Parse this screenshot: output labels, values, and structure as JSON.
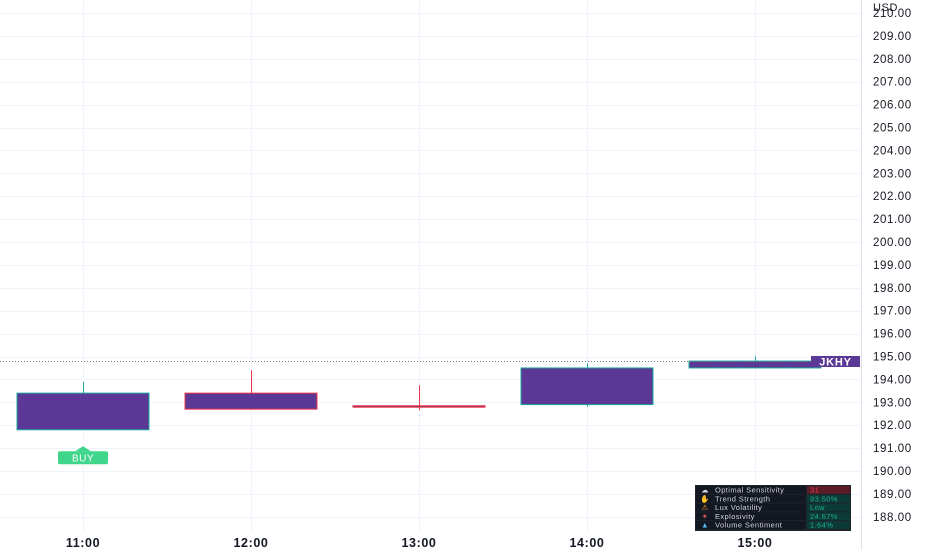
{
  "chart_data": {
    "type": "candlestick",
    "currency": "USD",
    "ticker": "JKHY",
    "last_price": 194.8,
    "price_axis": {
      "ylim": [
        187.3,
        210.0
      ],
      "tick_labels": [
        "210.00",
        "209.00",
        "208.00",
        "207.00",
        "206.00",
        "205.00",
        "204.00",
        "203.00",
        "202.00",
        "201.00",
        "200.00",
        "199.00",
        "198.00",
        "197.00",
        "196.00",
        "195.00",
        "194.00",
        "193.00",
        "192.00",
        "191.00",
        "190.00",
        "189.00",
        "188.00"
      ]
    },
    "time_axis": {
      "labels": [
        "11:00",
        "12:00",
        "13:00",
        "14:00",
        "15:00"
      ]
    },
    "candles": [
      {
        "time": "11:00",
        "open": 191.8,
        "high": 193.9,
        "low": 191.8,
        "close": 193.4,
        "direction": "up"
      },
      {
        "time": "12:00",
        "open": 193.4,
        "high": 194.4,
        "low": 192.7,
        "close": 192.7,
        "direction": "down"
      },
      {
        "time": "13:00",
        "open": 192.85,
        "high": 193.75,
        "low": 192.65,
        "close": 192.85,
        "direction": "down"
      },
      {
        "time": "14:00",
        "open": 192.9,
        "high": 194.7,
        "low": 192.8,
        "close": 194.5,
        "direction": "up"
      },
      {
        "time": "15:00",
        "open": 194.5,
        "high": 195.0,
        "low": 194.5,
        "close": 194.8,
        "direction": "up"
      }
    ],
    "signals": [
      {
        "time": "11:00",
        "label": "BUY",
        "price": 190.6
      }
    ],
    "grid": true,
    "colors": {
      "candle_body": "#5b3796",
      "up_wick": "#1ba89c",
      "down_wick": "#f23645",
      "buy_signal": "#3fd68c",
      "last_price_line": "#787b86",
      "ticker_badge": "#5b3796"
    }
  },
  "dashboard": {
    "rows": [
      {
        "icon": "optimal-sensitivity-icon",
        "label": "Optimal Sensitivity",
        "value": "31",
        "value_color": "#f23645",
        "value_bg": "#5a1d28"
      },
      {
        "icon": "trend-strength-icon",
        "label": "Trend Strength",
        "value": "93.50%",
        "value_color": "#22ab94",
        "value_bg": "#0c3b36"
      },
      {
        "icon": "lux-volatility-icon",
        "label": "Lux Volatility",
        "value": "Low",
        "value_color": "#22ab94",
        "value_bg": "#0c3b36"
      },
      {
        "icon": "explosivity-icon",
        "label": "Explosivity",
        "value": "24.67%",
        "value_color": "#22ab94",
        "value_bg": "#0c3b36"
      },
      {
        "icon": "volume-sentiment-icon",
        "label": "Volume Sentiment",
        "value": "1.64%",
        "value_color": "#22ab94",
        "value_bg": "#0c3b36"
      }
    ]
  }
}
